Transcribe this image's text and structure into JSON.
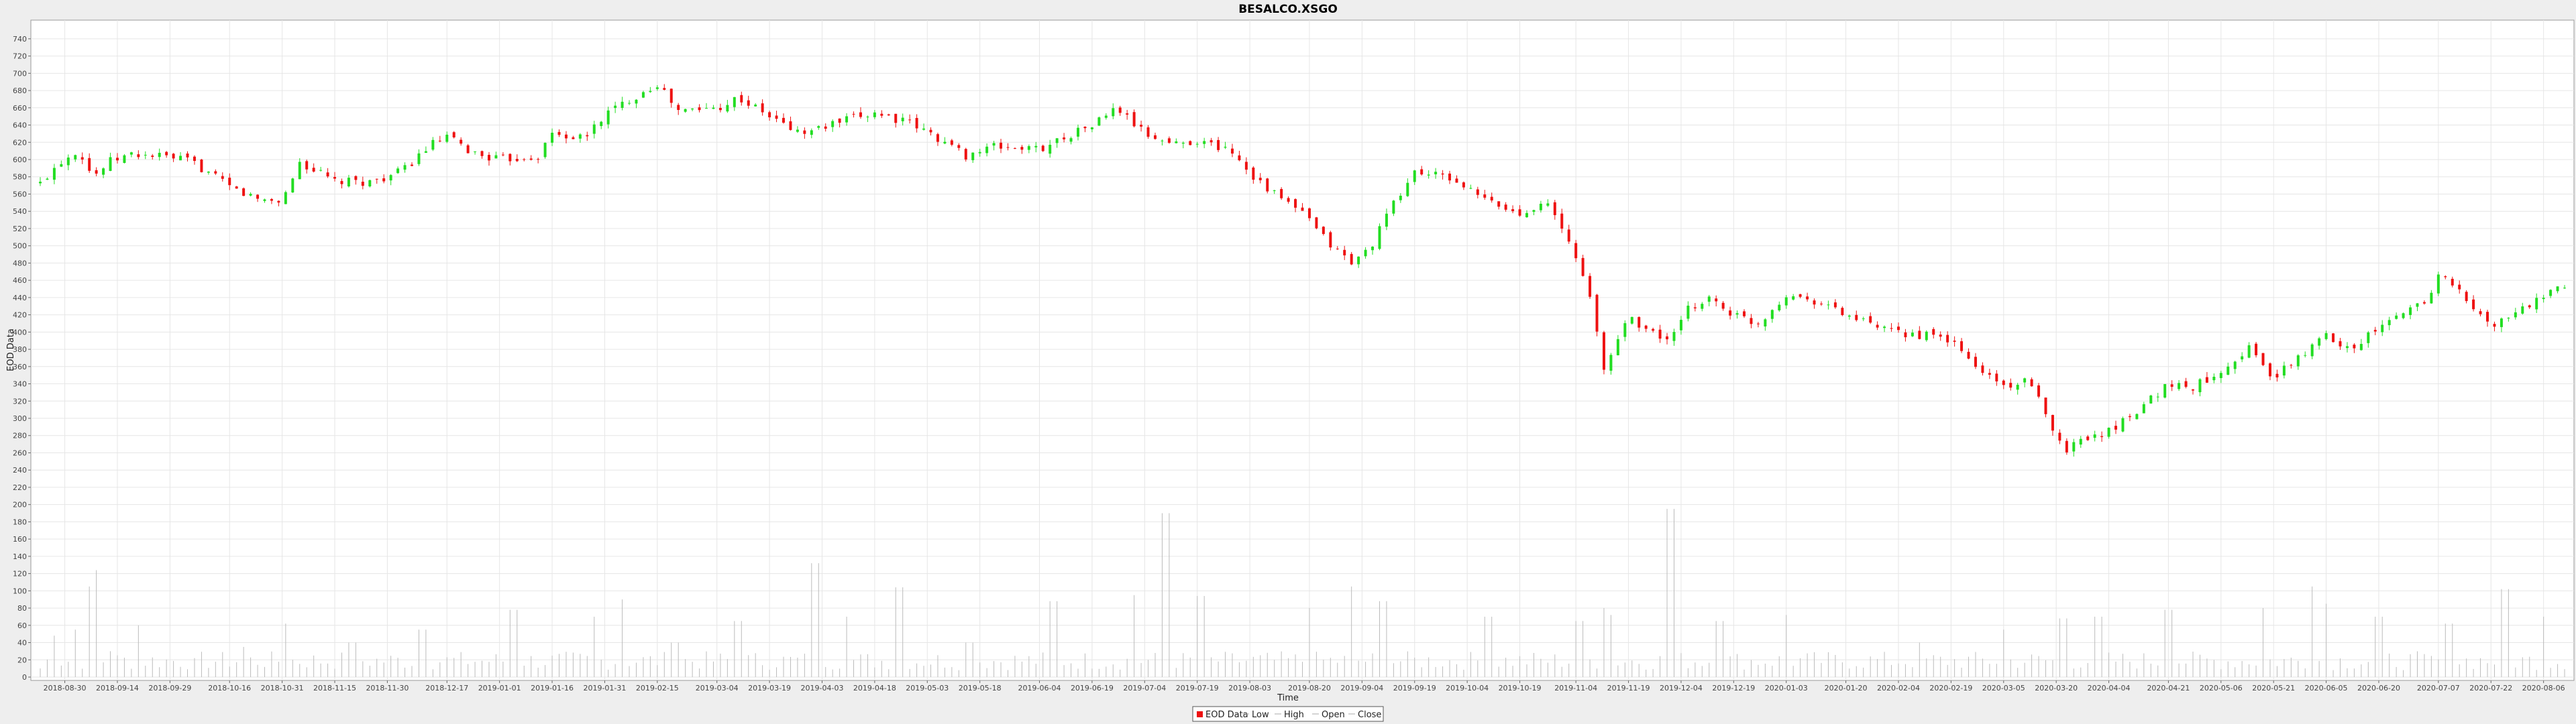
{
  "chart_data": {
    "type": "candlestick",
    "title": "BESALCO.XSGO",
    "xlabel": "Time",
    "ylabel": "EOD Data",
    "ylim": [
      0,
      750
    ],
    "y_ticks": [
      0,
      20,
      40,
      60,
      80,
      100,
      120,
      140,
      160,
      180,
      200,
      220,
      240,
      260,
      280,
      300,
      320,
      340,
      360,
      380,
      400,
      420,
      440,
      460,
      480,
      500,
      520,
      540,
      560,
      580,
      600,
      620,
      640,
      660,
      680,
      700,
      720,
      740
    ],
    "x_range": [
      "2018-08-23",
      "2020-08-12"
    ],
    "x_ticks": [
      "2018-08-30",
      "2018-09-14",
      "2018-09-29",
      "2018-10-16",
      "2018-10-31",
      "2018-11-15",
      "2018-11-30",
      "2018-12-17",
      "2019-01-01",
      "2019-01-16",
      "2019-01-31",
      "2019-02-15",
      "2019-03-04",
      "2019-03-19",
      "2019-04-03",
      "2019-04-18",
      "2019-05-03",
      "2019-05-18",
      "2019-06-04",
      "2019-06-19",
      "2019-07-04",
      "2019-07-19",
      "2019-08-03",
      "2019-08-20",
      "2019-09-04",
      "2019-09-19",
      "2019-10-04",
      "2019-10-19",
      "2019-11-04",
      "2019-11-19",
      "2019-12-04",
      "2019-12-19",
      "2020-01-03",
      "2020-01-20",
      "2020-02-04",
      "2020-02-19",
      "2020-03-05",
      "2020-03-20",
      "2020-04-04",
      "2020-04-21",
      "2020-05-06",
      "2020-05-21",
      "2020-06-05",
      "2020-06-20",
      "2020-07-07",
      "2020-07-22",
      "2020-08-06"
    ],
    "grid": true,
    "legend_position": "bottom",
    "legend": [
      "EOD Data",
      "Low",
      "High",
      "Open",
      "Close"
    ],
    "colors": {
      "up": "#22dd22",
      "down": "#ee1111",
      "volume": "#bbbbbb",
      "grid": "#e6e6e6"
    },
    "close_series": [
      {
        "x": "2018-08-23",
        "y": 572
      },
      {
        "x": "2018-08-28",
        "y": 596
      },
      {
        "x": "2018-09-03",
        "y": 612
      },
      {
        "x": "2018-09-07",
        "y": 580
      },
      {
        "x": "2018-09-12",
        "y": 598
      },
      {
        "x": "2018-09-18",
        "y": 606
      },
      {
        "x": "2018-09-26",
        "y": 604
      },
      {
        "x": "2018-10-05",
        "y": 598
      },
      {
        "x": "2018-10-16",
        "y": 568
      },
      {
        "x": "2018-10-24",
        "y": 554
      },
      {
        "x": "2018-10-31",
        "y": 552
      },
      {
        "x": "2018-11-05",
        "y": 597
      },
      {
        "x": "2018-11-15",
        "y": 574
      },
      {
        "x": "2018-11-25",
        "y": 574
      },
      {
        "x": "2018-12-04",
        "y": 586
      },
      {
        "x": "2018-12-12",
        "y": 616
      },
      {
        "x": "2018-12-17",
        "y": 626
      },
      {
        "x": "2018-12-24",
        "y": 608
      },
      {
        "x": "2019-01-01",
        "y": 600
      },
      {
        "x": "2019-01-12",
        "y": 604
      },
      {
        "x": "2019-01-16",
        "y": 630
      },
      {
        "x": "2019-01-25",
        "y": 624
      },
      {
        "x": "2019-01-31",
        "y": 652
      },
      {
        "x": "2019-02-08",
        "y": 672
      },
      {
        "x": "2019-02-15",
        "y": 688
      },
      {
        "x": "2019-02-21",
        "y": 656
      },
      {
        "x": "2019-03-04",
        "y": 660
      },
      {
        "x": "2019-03-10",
        "y": 672
      },
      {
        "x": "2019-03-19",
        "y": 650
      },
      {
        "x": "2019-03-28",
        "y": 630
      },
      {
        "x": "2019-04-07",
        "y": 642
      },
      {
        "x": "2019-04-18",
        "y": 655
      },
      {
        "x": "2019-04-28",
        "y": 642
      },
      {
        "x": "2019-05-06",
        "y": 625
      },
      {
        "x": "2019-05-14",
        "y": 605
      },
      {
        "x": "2019-05-22",
        "y": 615
      },
      {
        "x": "2019-06-04",
        "y": 612
      },
      {
        "x": "2019-06-12",
        "y": 628
      },
      {
        "x": "2019-06-19",
        "y": 640
      },
      {
        "x": "2019-06-26",
        "y": 660
      },
      {
        "x": "2019-07-04",
        "y": 630
      },
      {
        "x": "2019-07-12",
        "y": 618
      },
      {
        "x": "2019-07-19",
        "y": 622
      },
      {
        "x": "2019-07-29",
        "y": 610
      },
      {
        "x": "2019-08-03",
        "y": 585
      },
      {
        "x": "2019-08-10",
        "y": 560
      },
      {
        "x": "2019-08-18",
        "y": 538
      },
      {
        "x": "2019-08-25",
        "y": 505
      },
      {
        "x": "2019-09-01",
        "y": 480
      },
      {
        "x": "2019-09-06",
        "y": 496
      },
      {
        "x": "2019-09-12",
        "y": 542
      },
      {
        "x": "2019-09-19",
        "y": 586
      },
      {
        "x": "2019-09-25",
        "y": 582
      },
      {
        "x": "2019-10-01",
        "y": 575
      },
      {
        "x": "2019-10-06",
        "y": 560
      },
      {
        "x": "2019-10-12",
        "y": 548
      },
      {
        "x": "2019-10-19",
        "y": 536
      },
      {
        "x": "2019-10-26",
        "y": 554
      },
      {
        "x": "2019-11-01",
        "y": 512
      },
      {
        "x": "2019-11-07",
        "y": 460
      },
      {
        "x": "2019-11-12",
        "y": 356
      },
      {
        "x": "2019-11-19",
        "y": 420
      },
      {
        "x": "2019-11-25",
        "y": 400
      },
      {
        "x": "2019-12-01",
        "y": 390
      },
      {
        "x": "2019-12-06",
        "y": 426
      },
      {
        "x": "2019-12-12",
        "y": 440
      },
      {
        "x": "2019-12-19",
        "y": 420
      },
      {
        "x": "2019-12-26",
        "y": 410
      },
      {
        "x": "2020-01-03",
        "y": 444
      },
      {
        "x": "2020-01-12",
        "y": 436
      },
      {
        "x": "2020-01-20",
        "y": 420
      },
      {
        "x": "2020-02-01",
        "y": 400
      },
      {
        "x": "2020-02-12",
        "y": 396
      },
      {
        "x": "2020-02-19",
        "y": 390
      },
      {
        "x": "2020-02-26",
        "y": 360
      },
      {
        "x": "2020-03-05",
        "y": 338
      },
      {
        "x": "2020-03-12",
        "y": 342
      },
      {
        "x": "2020-03-18",
        "y": 300
      },
      {
        "x": "2020-03-22",
        "y": 262
      },
      {
        "x": "2020-03-28",
        "y": 278
      },
      {
        "x": "2020-04-04",
        "y": 285
      },
      {
        "x": "2020-04-12",
        "y": 310
      },
      {
        "x": "2020-04-21",
        "y": 340
      },
      {
        "x": "2020-04-28",
        "y": 336
      },
      {
        "x": "2020-05-06",
        "y": 356
      },
      {
        "x": "2020-05-14",
        "y": 382
      },
      {
        "x": "2020-05-21",
        "y": 346
      },
      {
        "x": "2020-05-28",
        "y": 370
      },
      {
        "x": "2020-06-05",
        "y": 396
      },
      {
        "x": "2020-06-12",
        "y": 382
      },
      {
        "x": "2020-06-20",
        "y": 404
      },
      {
        "x": "2020-06-28",
        "y": 425
      },
      {
        "x": "2020-07-04",
        "y": 440
      },
      {
        "x": "2020-07-08",
        "y": 472
      },
      {
        "x": "2020-07-14",
        "y": 440
      },
      {
        "x": "2020-07-22",
        "y": 406
      },
      {
        "x": "2020-07-28",
        "y": 420
      },
      {
        "x": "2020-08-06",
        "y": 440
      },
      {
        "x": "2020-08-12",
        "y": 452
      }
    ],
    "volume_series": [
      {
        "x": "2018-08-23",
        "y": 10
      },
      {
        "x": "2018-08-27",
        "y": 48
      },
      {
        "x": "2018-09-02",
        "y": 55
      },
      {
        "x": "2018-09-06",
        "y": 105
      },
      {
        "x": "2018-09-07",
        "y": 124
      },
      {
        "x": "2018-09-12",
        "y": 30
      },
      {
        "x": "2018-09-20",
        "y": 60
      },
      {
        "x": "2018-10-06",
        "y": 22
      },
      {
        "x": "2018-10-20",
        "y": 35
      },
      {
        "x": "2018-11-01",
        "y": 62
      },
      {
        "x": "2018-11-20",
        "y": 40
      },
      {
        "x": "2018-12-10",
        "y": 55
      },
      {
        "x": "2019-01-05",
        "y": 78
      },
      {
        "x": "2019-01-28",
        "y": 70
      },
      {
        "x": "2019-02-05",
        "y": 90
      },
      {
        "x": "2019-02-20",
        "y": 40
      },
      {
        "x": "2019-03-10",
        "y": 65
      },
      {
        "x": "2019-04-01",
        "y": 132
      },
      {
        "x": "2019-04-10",
        "y": 70
      },
      {
        "x": "2019-04-25",
        "y": 104
      },
      {
        "x": "2019-05-15",
        "y": 40
      },
      {
        "x": "2019-06-08",
        "y": 88
      },
      {
        "x": "2019-07-01",
        "y": 95
      },
      {
        "x": "2019-07-10",
        "y": 190
      },
      {
        "x": "2019-07-20",
        "y": 94
      },
      {
        "x": "2019-08-20",
        "y": 80
      },
      {
        "x": "2019-09-01",
        "y": 105
      },
      {
        "x": "2019-09-10",
        "y": 88
      },
      {
        "x": "2019-10-10",
        "y": 70
      },
      {
        "x": "2019-11-05",
        "y": 65
      },
      {
        "x": "2019-11-12",
        "y": 80
      },
      {
        "x": "2019-11-14",
        "y": 72
      },
      {
        "x": "2019-12-01",
        "y": 195
      },
      {
        "x": "2019-12-15",
        "y": 65
      },
      {
        "x": "2020-01-03",
        "y": 72
      },
      {
        "x": "2020-02-10",
        "y": 40
      },
      {
        "x": "2020-03-05",
        "y": 55
      },
      {
        "x": "2020-03-22",
        "y": 68
      },
      {
        "x": "2020-04-01",
        "y": 70
      },
      {
        "x": "2020-04-21",
        "y": 78
      },
      {
        "x": "2020-05-18",
        "y": 80
      },
      {
        "x": "2020-06-01",
        "y": 105
      },
      {
        "x": "2020-06-05",
        "y": 85
      },
      {
        "x": "2020-06-20",
        "y": 70
      },
      {
        "x": "2020-07-10",
        "y": 62
      },
      {
        "x": "2020-07-26",
        "y": 102
      },
      {
        "x": "2020-08-06",
        "y": 70
      }
    ]
  }
}
